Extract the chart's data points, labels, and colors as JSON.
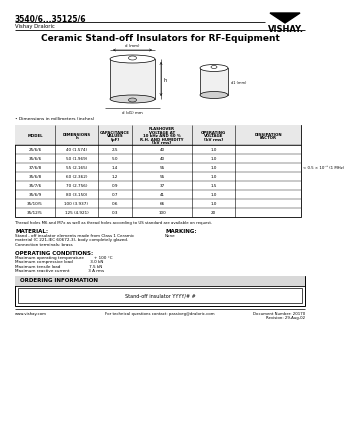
{
  "title_part": "3540/6...35125/6",
  "title_company": "Vishay Draloric",
  "title_main": "Ceramic Stand-off Insulators for RF-Equipment",
  "table_col_headers": [
    "MODEL",
    "DIMENSIONS\nh",
    "CAPACITANCE\nVALUES\n[pF]",
    "FLASHOVER\nVOLTAGE AT\n10 kHz AND 60 %\nR.H. AND HUMIDITY\n[kV rms]",
    "OPERATING\nVOLTAGE\n[kV rms]",
    "DISSIPATION\nFACTOR"
  ],
  "table_data": [
    [
      "25/6/6",
      "40 (1.574)",
      "2.5",
      "40",
      "1.0"
    ],
    [
      "35/6/6",
      "50 (1.969)",
      "5.0",
      "40",
      "1.0"
    ],
    [
      "37/6/8",
      "55 (2.165)",
      "1.4",
      "55",
      "1.0"
    ],
    [
      "35/6/8",
      "60 (2.362)",
      "1.2",
      "55",
      "1.0"
    ],
    [
      "35/7/6",
      "70 (2.756)",
      "0.9",
      "37",
      "1.5"
    ],
    [
      "35/6/9",
      "80 (3.150)",
      "0.7",
      "41",
      "1.0"
    ],
    [
      "35/10/5",
      "100 (3.937)",
      "0.6",
      "66",
      "1.0"
    ],
    [
      "35/12/5",
      "125 (4.921)",
      "0.3",
      "100",
      "20"
    ]
  ],
  "dissipation_note": "< 0.5 × 10⁻³ (1 MHz)",
  "footnote": "Thread holes M6 and M7x as well as thread holes according to US standard are available on request.",
  "material_title": "MATERIAL:",
  "material_lines": [
    "Stand - off insulator elements made from Class 1 Ceramic",
    "material (C 221-IEC 60672-3), body completely glazed.",
    "Connection terminals: brass"
  ],
  "marking_title": "MARKING:",
  "marking_text": "None",
  "operating_title": "OPERATING CONDITIONS:",
  "operating_lines": [
    "Maximum operating temperature        + 100 °C",
    "Maximum compressive load              3.0 kN",
    "Maximum tensile load                       7.5 kN",
    "Maximum reactive current               3 A rms"
  ],
  "ordering_title": "ORDERING INFORMATION",
  "ordering_text": "Stand-off insulator YYYY/# #",
  "footer_left": "www.vishay.com",
  "footer_mid": "For technical questions contact: passiveg@draloric.com",
  "footer_right_1": "Document Number: 20170",
  "footer_right_2": "Revision: 29-Aug-02",
  "bg_color": "#ffffff"
}
